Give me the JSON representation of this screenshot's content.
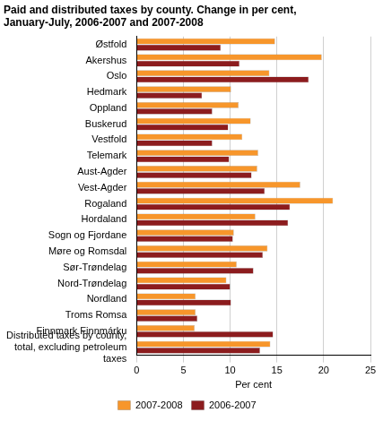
{
  "chart_data": {
    "type": "bar",
    "orientation": "horizontal",
    "title": "Paid and distributed taxes by county. Change in per cent, January-July, 2006-2007 and 2007-2008",
    "xlabel": "Per cent",
    "categories": [
      "Østfold",
      "Akershus",
      "Oslo",
      "Hedmark",
      "Oppland",
      "Buskerud",
      "Vestfold",
      "Telemark",
      "Aust-Agder",
      "Vest-Agder",
      "Rogaland",
      "Hordaland",
      "Sogn og Fjordane",
      "Møre og Romsdal",
      "Sør-Trøndelag",
      "Nord-Trøndelag",
      "Nordland",
      "Troms Romsa",
      "Finnmark Finnmárku",
      "Distributed taxes by county, total, excluding petroleum taxes"
    ],
    "series": [
      {
        "name": "2007-2008",
        "color": "#f7962b",
        "values": [
          14.8,
          19.8,
          14.2,
          10.1,
          10.9,
          12.2,
          11.3,
          13.0,
          12.9,
          17.5,
          21.0,
          12.7,
          10.4,
          14.0,
          10.7,
          9.6,
          6.3,
          6.3,
          6.2,
          14.3
        ]
      },
      {
        "name": "2006-2007",
        "color": "#8c1c1e",
        "values": [
          9.0,
          11.0,
          18.4,
          7.0,
          8.1,
          9.8,
          8.1,
          9.9,
          12.3,
          13.7,
          16.4,
          16.2,
          10.3,
          13.5,
          12.5,
          10.0,
          10.1,
          6.5,
          14.6,
          13.2
        ]
      }
    ],
    "xlim": [
      0,
      25
    ],
    "xticks": [
      0,
      5,
      10,
      15,
      20,
      25
    ],
    "grid": true,
    "legend": "bottom"
  }
}
